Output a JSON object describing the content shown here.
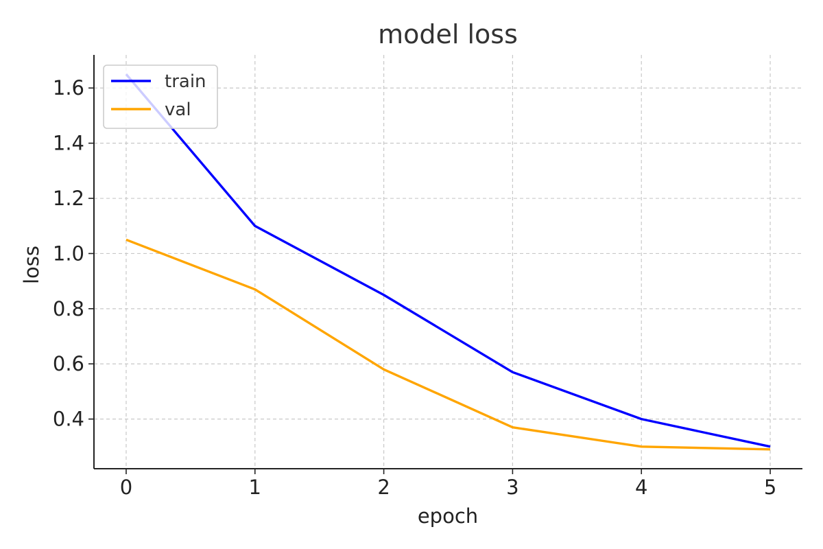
{
  "chart_data": {
    "type": "line",
    "title": "model loss",
    "xlabel": "epoch",
    "ylabel": "loss",
    "x": [
      0,
      1,
      2,
      3,
      4,
      5
    ],
    "xlim": [
      -0.25,
      5.25
    ],
    "ylim": [
      0.22,
      1.72
    ],
    "xticks": [
      0,
      1,
      2,
      3,
      4,
      5
    ],
    "yticks": [
      0.4,
      0.6,
      0.8,
      1.0,
      1.2,
      1.4,
      1.6
    ],
    "ytick_labels": [
      "0.4",
      "0.6",
      "0.8",
      "1.0",
      "1.2",
      "1.4",
      "1.6"
    ],
    "grid": true,
    "legend_position": "top-left",
    "series": [
      {
        "name": "train",
        "color": "#0000ff",
        "values": [
          1.65,
          1.1,
          0.85,
          0.57,
          0.4,
          0.3
        ]
      },
      {
        "name": "val",
        "color": "#ffa500",
        "values": [
          1.05,
          0.87,
          0.58,
          0.37,
          0.3,
          0.29
        ]
      }
    ]
  }
}
